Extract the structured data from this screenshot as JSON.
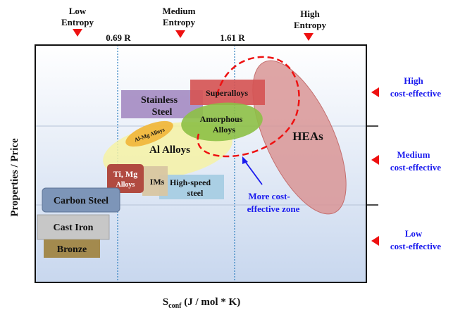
{
  "entropy_levels": [
    {
      "line1": "Low",
      "line2": "Entropy"
    },
    {
      "line1": "Medium",
      "line2": "Entropy"
    },
    {
      "line1": "High",
      "line2": "Entropy"
    }
  ],
  "thresholds": [
    "0.69 R",
    "1.61 R"
  ],
  "axis": {
    "ylabel": "Properties / Price",
    "xlabel_main": "S",
    "xlabel_sub": "conf",
    "xlabel_unit": " (J / mol * K)"
  },
  "cost_levels": [
    {
      "line1": "High",
      "line2": "cost-effective"
    },
    {
      "line1": "Medium",
      "line2": "cost-effective"
    },
    {
      "line1": "Low",
      "line2": "cost-effective"
    }
  ],
  "materials": {
    "stainless_l1": "Stainless",
    "stainless_l2": "Steel",
    "superalloys": "Superalloys",
    "amorphous_l1": "Amorphous",
    "amorphous_l2": "Alloys",
    "heas": "HEAs",
    "almg": "Al-Mg Alloys",
    "al": "Al Alloys",
    "timg_l1": "Ti, Mg",
    "timg_l2": "Alloys",
    "ims": "IMs",
    "hss_l1": "High-speed",
    "hss_l2": "steel",
    "carbon": "Carbon Steel",
    "castiron": "Cast Iron",
    "bronze": "Bronze"
  },
  "zone_note": {
    "line1": "More cost-",
    "line2": "effective zone"
  },
  "colors": {
    "marker": "#ee1111",
    "blue_text": "#1a1aee",
    "dashed": "#ee1111",
    "plot_bg_top": "#ffffff",
    "plot_bg_bottom": "#c8d7ee"
  }
}
